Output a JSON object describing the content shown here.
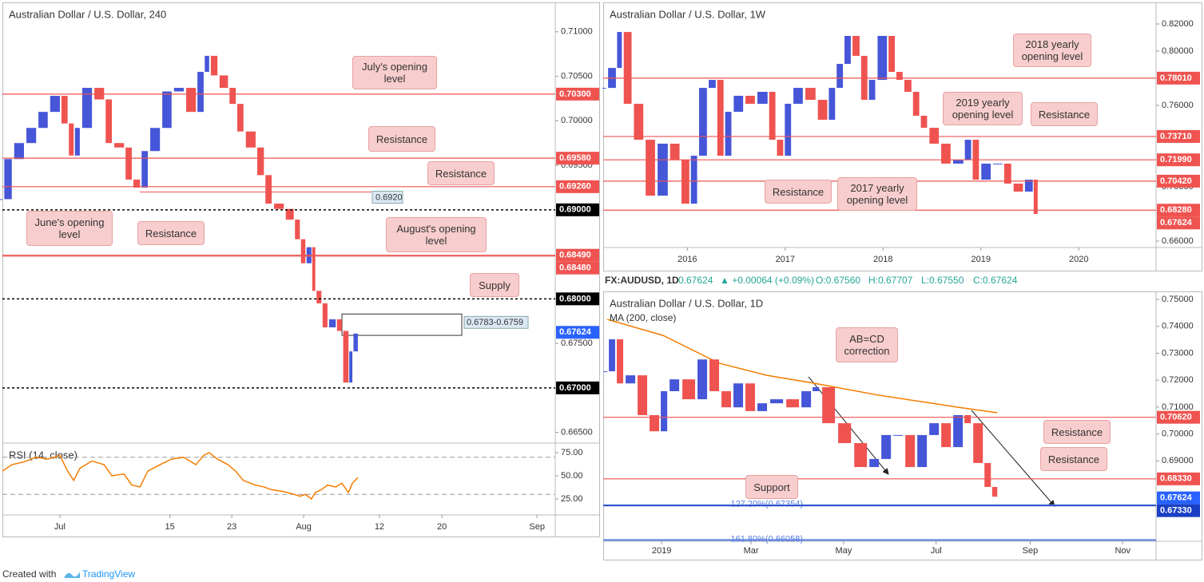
{
  "header": {
    "symbol": "FX:AUDUSD, 1D",
    "last": "0.67624",
    "change": "▲ +0.00064 (+0.09%)",
    "open": "O:0.67560",
    "high": "H:0.67707",
    "low": "L:0.67550",
    "close": "C:0.67624"
  },
  "footer": {
    "text": "Created with",
    "brand": "TradingView"
  },
  "chart_data": [
    {
      "type": "candlestick",
      "title": "Australian Dollar / U.S. Dollar, 240",
      "up_color": "#4656d8",
      "down_color": "#ef5350",
      "x": [
        0,
        1.7,
        3.9,
        6.1,
        8.2,
        10.4,
        11.8,
        12.9,
        14.0,
        16.2,
        18.4,
        19.8,
        22.0,
        23.4,
        24.9,
        26.3,
        28.5,
        30.6,
        32.8,
        35.0,
        36.4,
        37.4,
        38.9,
        40.8,
        42.2,
        43.6,
        45.8,
        47.3,
        48.7,
        50.9,
        52.7,
        53.8,
        54.8,
        55.9,
        56.6,
        57.7,
        58.8,
        60.3,
        61.4,
        62.6,
        63.3,
        64.3
      ],
      "values": [
        0.6912,
        0.6957,
        0.6975,
        0.6992,
        0.701,
        0.7028,
        0.6997,
        0.6961,
        0.6992,
        0.7037,
        0.7024,
        0.6975,
        0.697,
        0.6934,
        0.6925,
        0.6966,
        0.6992,
        0.7033,
        0.7037,
        0.701,
        0.7055,
        0.7073,
        0.7051,
        0.7037,
        0.7019,
        0.6988,
        0.697,
        0.6939,
        0.6907,
        0.6901,
        0.6889,
        0.6867,
        0.684,
        0.6858,
        0.6809,
        0.6795,
        0.6768,
        0.6777,
        0.6764,
        0.6706,
        0.6741,
        0.6761
      ],
      "xlim": [
        0,
        100
      ],
      "ylim": [
        0.6638,
        0.7133
      ],
      "yticks": [
        {
          "value": 0.71,
          "label": "0.71000"
        },
        {
          "value": 0.705,
          "label": "0.70500"
        },
        {
          "value": 0.7,
          "label": "0.70000"
        },
        {
          "value": 0.695,
          "label": "0.69500"
        },
        {
          "value": 0.675,
          "label": "0.67500"
        },
        {
          "value": 0.665,
          "label": "0.66500"
        }
      ],
      "levels": [
        {
          "value": 0.703,
          "label": "0.70300",
          "color": "#ef5350",
          "style": "solid"
        },
        {
          "value": 0.6958,
          "label": "0.69580",
          "color": "#ef5350",
          "style": "solid"
        },
        {
          "value": 0.6926,
          "label": "0.69260",
          "color": "#ef5350",
          "style": "solid"
        },
        {
          "value": 0.69,
          "label": "0.69000",
          "color": "#000000",
          "style": "dotted"
        },
        {
          "value": 0.6849,
          "label": "0.68490",
          "color": "#ef5350",
          "style": "solid"
        },
        {
          "value": 0.6848,
          "label": "0.68480",
          "color": "#ef5350",
          "style": "solid"
        },
        {
          "value": 0.68,
          "label": "0.68000",
          "color": "#000000",
          "style": "dotted"
        },
        {
          "value": 0.67624,
          "label": "0.67624",
          "color": "#2962ff",
          "style": "none"
        },
        {
          "value": 0.67,
          "label": "0.67000",
          "color": "#000000",
          "style": "dotted"
        }
      ],
      "zone": {
        "top": 0.6783,
        "bottom": 0.6759,
        "label": "0.6783-0.6759"
      },
      "marker": {
        "value": 0.692,
        "label": "0.6920"
      },
      "annotations": [
        "July's opening level",
        "Resistance",
        "Resistance",
        "June's opening level",
        "Resistance",
        "August's opening level",
        "Supply"
      ]
    },
    {
      "type": "line",
      "title": "RSI (14, close)",
      "color": "#f57c00",
      "x": [
        0,
        1.7,
        3.9,
        6.1,
        8.2,
        10.4,
        11.8,
        12.9,
        14.0,
        16.2,
        18.4,
        19.8,
        22.0,
        23.4,
        24.9,
        26.3,
        28.5,
        30.6,
        32.8,
        35.0,
        36.4,
        37.4,
        38.9,
        40.8,
        42.2,
        43.6,
        45.8,
        47.3,
        48.7,
        50.9,
        52.7,
        53.8,
        54.8,
        55.9,
        56.6,
        57.7,
        58.8,
        60.3,
        61.4,
        62.6,
        63.3,
        64.3
      ],
      "values": [
        55,
        62,
        65,
        70,
        68,
        72,
        55,
        45,
        58,
        66,
        62,
        50,
        52,
        40,
        38,
        55,
        62,
        68,
        70,
        62,
        72,
        75,
        68,
        62,
        55,
        45,
        40,
        38,
        35,
        33,
        30,
        28,
        30,
        25,
        32,
        35,
        40,
        38,
        42,
        32,
        42,
        48
      ],
      "xlim": [
        0,
        100
      ],
      "ylim": [
        7.8,
        85.3
      ],
      "yticks": [
        {
          "value": 75,
          "label": "75.00"
        },
        {
          "value": 50,
          "label": "50.00"
        },
        {
          "value": 25,
          "label": "25.00"
        }
      ],
      "bands": [
        70,
        30
      ],
      "xticks": [
        {
          "value": 10.4,
          "label": "Jul"
        },
        {
          "value": 30.3,
          "label": "15"
        },
        {
          "value": 41.5,
          "label": "23"
        },
        {
          "value": 54.5,
          "label": "Aug"
        },
        {
          "value": 68.2,
          "label": "12"
        },
        {
          "value": 79.5,
          "label": "20"
        },
        {
          "value": 96.7,
          "label": "Sep"
        }
      ]
    },
    {
      "type": "candlestick",
      "title": "Australian Dollar / U.S. Dollar, 1W",
      "up_color": "#4656d8",
      "down_color": "#ef5350",
      "x": [
        2015.17,
        2015.27,
        2015.33,
        2015.43,
        2015.55,
        2015.67,
        2015.8,
        2015.92,
        2016.02,
        2016.1,
        2016.2,
        2016.29,
        2016.37,
        2016.45,
        2016.57,
        2016.69,
        2016.82,
        2016.9,
        2016.98,
        2017.06,
        2017.18,
        2017.31,
        2017.43,
        2017.51,
        2017.59,
        2017.67,
        2017.76,
        2017.84,
        2017.92,
        2018.04,
        2018.12,
        2018.2,
        2018.29,
        2018.37,
        2018.45,
        2018.57,
        2018.69,
        2018.82,
        2018.9,
        2018.98,
        2019.1,
        2019.22,
        2019.31,
        2019.43,
        2019.53,
        2019.58
      ],
      "values": [
        0.7729,
        0.7876,
        0.8141,
        0.7612,
        0.7347,
        0.6935,
        0.7318,
        0.72,
        0.6876,
        0.7229,
        0.7729,
        0.7788,
        0.7229,
        0.7553,
        0.7671,
        0.7612,
        0.77,
        0.7347,
        0.7229,
        0.7612,
        0.7729,
        0.7641,
        0.7494,
        0.7729,
        0.7906,
        0.8112,
        0.7965,
        0.7641,
        0.7788,
        0.8112,
        0.7847,
        0.7788,
        0.77,
        0.7524,
        0.7435,
        0.7318,
        0.7171,
        0.72,
        0.7347,
        0.7053,
        0.7171,
        0.7171,
        0.7024,
        0.6965,
        0.7053,
        0.68
      ],
      "xlim": [
        2015.14,
        2020.79
      ],
      "ylim": [
        0.6553,
        0.8359
      ],
      "xticks": [
        2016,
        2017,
        2018,
        2019,
        2020
      ],
      "yticks": [
        {
          "value": 0.82,
          "label": "0.82000"
        },
        {
          "value": 0.8,
          "label": "0.80000"
        },
        {
          "value": 0.76,
          "label": "0.76000"
        },
        {
          "value": 0.7,
          "label": "0.70000"
        },
        {
          "value": 0.66,
          "label": "0.66000"
        }
      ],
      "levels": [
        {
          "value": 0.7801,
          "label": "0.78010",
          "color": "#ef5350",
          "style": "solid"
        },
        {
          "value": 0.7371,
          "label": "0.73710",
          "color": "#ef5350",
          "style": "solid"
        },
        {
          "value": 0.7199,
          "label": "0.71990",
          "color": "#ef5350",
          "style": "solid"
        },
        {
          "value": 0.7042,
          "label": "0.70420",
          "color": "#ef5350",
          "style": "solid"
        },
        {
          "value": 0.6828,
          "label": "0.68280",
          "color": "#ef5350",
          "style": "solid"
        },
        {
          "value": 0.67624,
          "label": "0.67624",
          "color": "#ef5350",
          "style": "none"
        }
      ],
      "annotations": [
        "2018 yearly opening level",
        "2019 yearly opening level",
        "Resistance",
        "Resistance",
        "2017 yearly opening level"
      ]
    },
    {
      "type": "candlestick",
      "title": "Australian Dollar / U.S. Dollar, 1D",
      "up_color": "#4656d8",
      "down_color": "#ef5350",
      "x": [
        -35.8,
        -30.6,
        -25.3,
        -17.4,
        -9.5,
        -1.6,
        3.7,
        11.6,
        22.1,
        30.0,
        37.9,
        45.8,
        53.7,
        61.6,
        69.5,
        80.1,
        90.6,
        98.5,
        103.8,
        114.3,
        124.9,
        135.4,
        143.3,
        151.2,
        159.1,
        167.0,
        174.9,
        182.8,
        190.7,
        198.6,
        203.9,
        211.8,
        217.1,
        221.3
      ],
      "values": [
        0.7233,
        0.7352,
        0.7188,
        0.7218,
        0.707,
        0.701,
        0.7159,
        0.7203,
        0.7129,
        0.7277,
        0.7159,
        0.7099,
        0.7188,
        0.7085,
        0.7114,
        0.7129,
        0.7099,
        0.7159,
        0.7174,
        0.704,
        0.6966,
        0.6877,
        0.6907,
        0.6996,
        0.6996,
        0.6877,
        0.6996,
        0.704,
        0.6951,
        0.707,
        0.704,
        0.6892,
        0.6803,
        0.6767
      ],
      "overlay": {
        "name": "MA (200, close)",
        "color": "#f57c00",
        "x": [
          -35.8,
          1.1,
          37.9,
          69.5,
          101.2,
          143.3,
          196.0,
          221.3
        ],
        "values": [
          0.7426,
          0.7366,
          0.7263,
          0.7218,
          0.7188,
          0.7144,
          0.7099,
          0.7079
        ]
      },
      "xlim": [
        -38.5,
        326
      ],
      "ylim": [
        0.6601,
        0.753
      ],
      "xticks": [
        {
          "value": 0,
          "label": "2019"
        },
        {
          "value": 59,
          "label": "Mar"
        },
        {
          "value": 120,
          "label": "May"
        },
        {
          "value": 181,
          "label": "Jul"
        },
        {
          "value": 243,
          "label": "Sep"
        },
        {
          "value": 304,
          "label": "Nov"
        }
      ],
      "yticks": [
        {
          "value": 0.75,
          "label": "0.75000"
        },
        {
          "value": 0.74,
          "label": "0.74000"
        },
        {
          "value": 0.73,
          "label": "0.73000"
        },
        {
          "value": 0.72,
          "label": "0.72000"
        },
        {
          "value": 0.71,
          "label": "0.71000"
        },
        {
          "value": 0.7,
          "label": "0.70000"
        },
        {
          "value": 0.69,
          "label": "0.69000"
        }
      ],
      "levels": [
        {
          "value": 0.7062,
          "label": "0.70620",
          "color": "#ef5350",
          "style": "solid"
        },
        {
          "value": 0.6833,
          "label": "0.68330",
          "color": "#ef5350",
          "style": "solid"
        },
        {
          "value": 0.67624,
          "label": "0.67624",
          "color": "#2962ff",
          "style": "none"
        },
        {
          "value": 0.6733,
          "label": "0.67330",
          "color": "#1a3fc4",
          "style": "solid"
        }
      ],
      "fibs": [
        {
          "value": 0.67354,
          "label": "127.20%(0.67354)",
          "color": "#5b7fe0"
        },
        {
          "value": 0.66058,
          "label": "161.80%(0.66058)",
          "color": "#5b7fe0"
        }
      ],
      "annotations": [
        "AB=CD correction",
        "Resistance",
        "Resistance",
        "Support"
      ]
    }
  ]
}
